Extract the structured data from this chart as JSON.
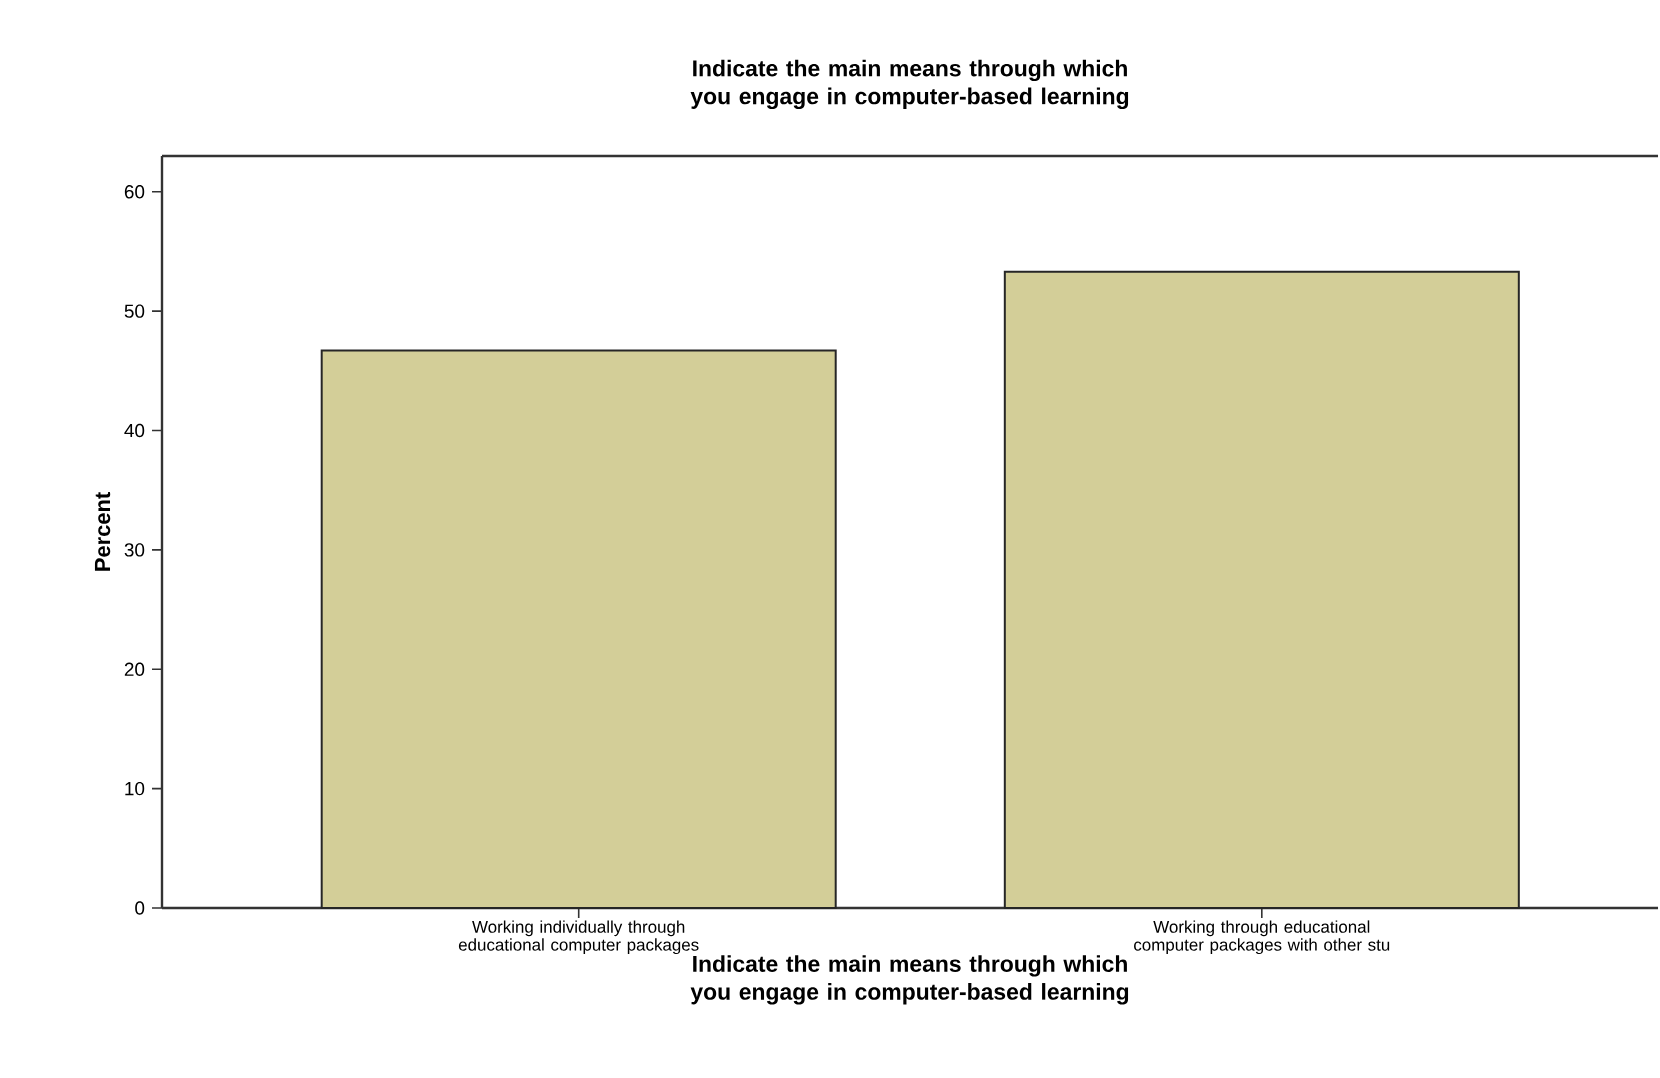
{
  "chart_data": {
    "type": "bar",
    "title": "Indicate the main means through which you engage in computer-based learning",
    "xlabel": "Indicate the main means through which you engage in computer-based learning",
    "ylabel": "Percent",
    "categories": [
      "Working individually through educational computer packages",
      "Working through educational computer packages with other stu"
    ],
    "values": [
      46.7,
      53.3
    ],
    "color": "#d3ce98",
    "ylim": [
      0,
      63
    ],
    "yticks": [
      0,
      10,
      20,
      30,
      40,
      50,
      60
    ],
    "grid": false
  }
}
